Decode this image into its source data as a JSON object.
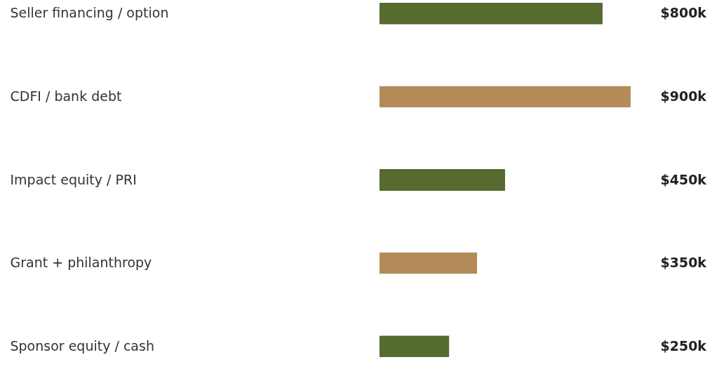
{
  "chart_data": {
    "type": "bar",
    "orientation": "horizontal",
    "categories": [
      "Seller financing / option",
      "CDFI / bank debt",
      "Impact equity / PRI",
      "Grant + philanthropy",
      "Sponsor equity / cash"
    ],
    "values": [
      800,
      900,
      450,
      350,
      250
    ],
    "colors": [
      "#556b2f",
      "#b38b59",
      "#556b2f",
      "#b38b59",
      "#556b2f"
    ],
    "value_labels": [
      "$800k",
      "$900k",
      "$450k",
      "$350k",
      "$250k"
    ],
    "grid": false
  }
}
